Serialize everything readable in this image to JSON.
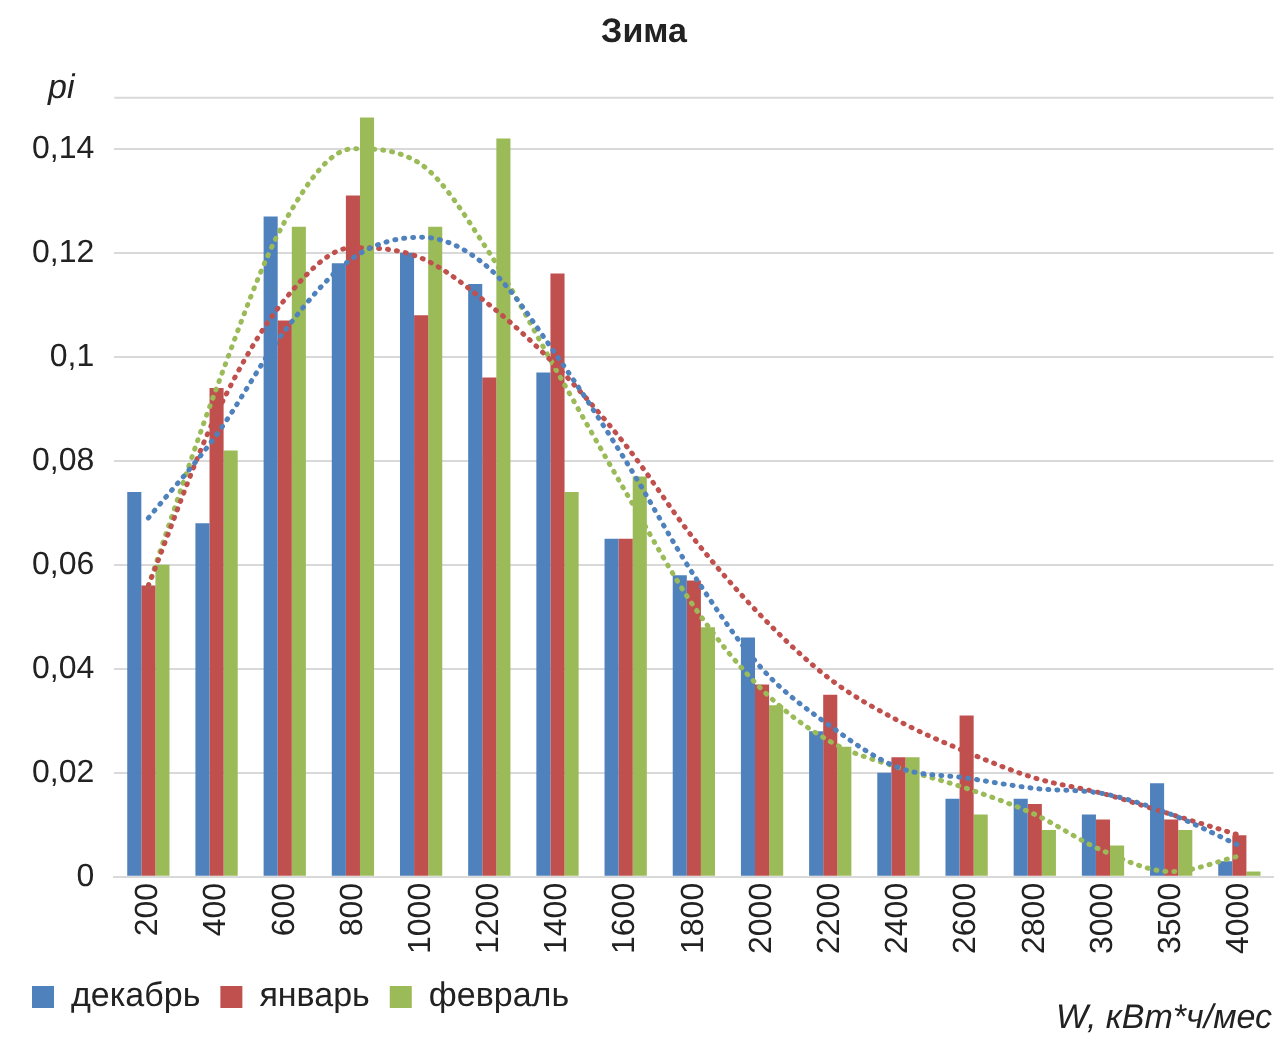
{
  "chart_data": {
    "type": "bar",
    "title": "Зима",
    "xlabel": "W, кВт*ч/мес",
    "ylabel": "pi",
    "categories": [
      "200",
      "400",
      "600",
      "800",
      "1000",
      "1200",
      "1400",
      "1600",
      "1800",
      "2000",
      "2200",
      "2400",
      "2600",
      "2800",
      "3000",
      "3500",
      "4000"
    ],
    "series": [
      {
        "name": "декабрь",
        "color": "#4f81bd",
        "values": [
          0.074,
          0.068,
          0.127,
          0.118,
          0.12,
          0.114,
          0.097,
          0.065,
          0.058,
          0.046,
          0.028,
          0.02,
          0.015,
          0.015,
          0.012,
          0.018,
          0.003
        ]
      },
      {
        "name": "январь",
        "color": "#c0504d",
        "values": [
          0.056,
          0.094,
          0.107,
          0.131,
          0.108,
          0.096,
          0.116,
          0.065,
          0.057,
          0.037,
          0.035,
          0.023,
          0.031,
          0.014,
          0.011,
          0.011,
          0.008
        ]
      },
      {
        "name": "февраль",
        "color": "#9bbb59",
        "values": [
          0.06,
          0.082,
          0.125,
          0.146,
          0.125,
          0.142,
          0.074,
          0.077,
          0.048,
          0.033,
          0.025,
          0.023,
          0.012,
          0.009,
          0.006,
          0.009,
          0.001
        ]
      },
      {
        "type": "line",
        "line_style": "dotted",
        "color": "#4f81bd",
        "values": [
          0.069,
          0.085,
          0.105,
          0.119,
          0.123,
          0.117,
          0.1,
          0.08,
          0.058,
          0.04,
          0.029,
          0.021,
          0.019,
          0.017,
          0.016,
          0.012,
          0.006
        ]
      },
      {
        "type": "line",
        "line_style": "dotted",
        "color": "#c0504d",
        "values": [
          0.056,
          0.089,
          0.111,
          0.121,
          0.119,
          0.11,
          0.098,
          0.083,
          0.065,
          0.05,
          0.038,
          0.03,
          0.024,
          0.019,
          0.016,
          0.012,
          0.008
        ]
      },
      {
        "type": "line",
        "line_style": "dotted",
        "color": "#9bbb59",
        "values": [
          0.056,
          0.094,
          0.126,
          0.14,
          0.137,
          0.12,
          0.097,
          0.074,
          0.052,
          0.036,
          0.026,
          0.021,
          0.017,
          0.012,
          0.005,
          0.001,
          0.004
        ]
      }
    ],
    "ylim": [
      0,
      0.15
    ],
    "yticks": [
      {
        "value": 0,
        "label": "0"
      },
      {
        "value": 0.02,
        "label": "0,02"
      },
      {
        "value": 0.04,
        "label": "0,04"
      },
      {
        "value": 0.06,
        "label": "0,06"
      },
      {
        "value": 0.08,
        "label": "0,08"
      },
      {
        "value": 0.1,
        "label": "0,1"
      },
      {
        "value": 0.12,
        "label": "0,12"
      },
      {
        "value": 0.14,
        "label": "0,14"
      }
    ],
    "grid": "y",
    "legend": "bottom left",
    "marker": "none"
  }
}
